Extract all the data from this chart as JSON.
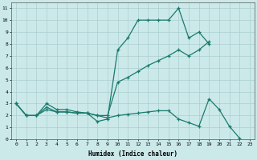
{
  "x": [
    0,
    1,
    2,
    3,
    4,
    5,
    6,
    7,
    8,
    9,
    10,
    11,
    12,
    13,
    14,
    15,
    16,
    17,
    18,
    19,
    20,
    21,
    22,
    23
  ],
  "line1": [
    3,
    2,
    2,
    3,
    2.5,
    2.5,
    2.3,
    2.2,
    1.5,
    1.7,
    7.5,
    8.5,
    10,
    10,
    10,
    10,
    11,
    8.5,
    9,
    8,
    null,
    null,
    null,
    null
  ],
  "line2": [
    3,
    2,
    2,
    2.5,
    2.3,
    2.3,
    2.2,
    2.2,
    2.0,
    2.0,
    4.8,
    5.2,
    5.7,
    6.2,
    6.6,
    7.0,
    7.5,
    7.0,
    7.5,
    8.2,
    null,
    null,
    null,
    null
  ],
  "line3": [
    3,
    2,
    2,
    2.7,
    2.3,
    2.3,
    2.2,
    2.2,
    2.0,
    1.8,
    2.0,
    2.1,
    2.2,
    2.3,
    2.4,
    2.4,
    1.7,
    1.4,
    1.1,
    3.4,
    2.5,
    1.1,
    0.1,
    null
  ],
  "line4": [
    null,
    null,
    null,
    null,
    null,
    null,
    null,
    null,
    null,
    null,
    null,
    null,
    null,
    null,
    null,
    null,
    null,
    null,
    null,
    null,
    null,
    null,
    null,
    null
  ],
  "color": "#1a7a6e",
  "bg_color": "#cce9e9",
  "grid_color": "#aacfcf",
  "xlabel": "Humidex (Indice chaleur)",
  "xlim": [
    -0.5,
    23.5
  ],
  "ylim": [
    0,
    11.5
  ],
  "yticks": [
    0,
    1,
    2,
    3,
    4,
    5,
    6,
    7,
    8,
    9,
    10,
    11
  ],
  "xticks": [
    0,
    1,
    2,
    3,
    4,
    5,
    6,
    7,
    8,
    9,
    10,
    11,
    12,
    13,
    14,
    15,
    16,
    17,
    18,
    19,
    20,
    21,
    22,
    23
  ]
}
